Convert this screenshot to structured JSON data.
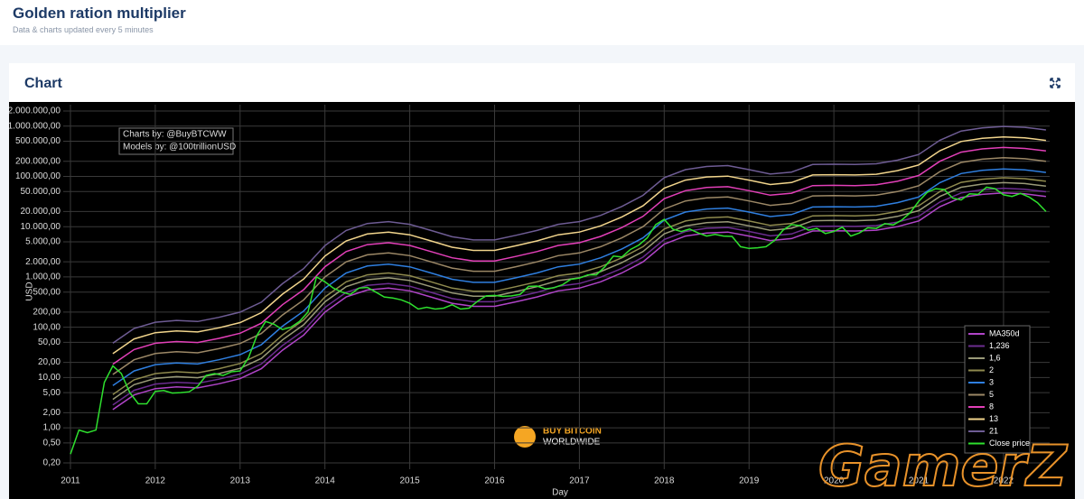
{
  "header": {
    "title": "Golden ration multiplier",
    "subtitle": "Data & charts updated every 5 minutes"
  },
  "card": {
    "title": "Chart"
  },
  "overlay": {
    "text": "GamerZ"
  },
  "chart_data": {
    "type": "line",
    "x_label": "Day",
    "y_label": "USD",
    "annotation": [
      "Charts by: @BuyBTCWW",
      "Models by: @100trillionUSD"
    ],
    "logo": [
      "BUY BITCOIN",
      "WORLDWIDE"
    ],
    "log_y": true,
    "grid": true,
    "legend": "lower right",
    "xlim": [
      2010.915,
      2022.544
    ],
    "xticks": [
      2011,
      2012,
      2013,
      2014,
      2015,
      2016,
      2017,
      2018,
      2019,
      2020,
      2021,
      2022
    ],
    "ylim": [
      0.15,
      2670000
    ],
    "yticks": [
      {
        "value": 0.2,
        "label": "0,20"
      },
      {
        "value": 0.5,
        "label": "0,50"
      },
      {
        "value": 1,
        "label": "1,00"
      },
      {
        "value": 2,
        "label": "2,00"
      },
      {
        "value": 5,
        "label": "5,00"
      },
      {
        "value": 10,
        "label": "10,00"
      },
      {
        "value": 20,
        "label": "20,00"
      },
      {
        "value": 50,
        "label": "50,00"
      },
      {
        "value": 100,
        "label": "100,00"
      },
      {
        "value": 200,
        "label": "200,00"
      },
      {
        "value": 500,
        "label": "500,00"
      },
      {
        "value": 1000,
        "label": "1.000,00"
      },
      {
        "value": 2000,
        "label": "2.000,00"
      },
      {
        "value": 5000,
        "label": "5.000,00"
      },
      {
        "value": 10000,
        "label": "10.000,00"
      },
      {
        "value": 20000,
        "label": "20.000,00"
      },
      {
        "value": 50000,
        "label": "50.000,00"
      },
      {
        "value": 100000,
        "label": "100.000,00"
      },
      {
        "value": 200000,
        "label": "200.000,00"
      },
      {
        "value": 500000,
        "label": "500.000,00"
      },
      {
        "value": 1000000,
        "label": "1.000.000,00"
      },
      {
        "value": 2000000,
        "label": "2.000.000,00"
      }
    ],
    "x": [
      2011.5,
      2011.75,
      2012,
      2012.25,
      2012.5,
      2012.75,
      2013,
      2013.25,
      2013.5,
      2013.75,
      2014,
      2014.25,
      2014.5,
      2014.75,
      2015,
      2015.25,
      2015.5,
      2015.75,
      2016,
      2016.25,
      2016.5,
      2016.75,
      2017,
      2017.25,
      2017.5,
      2017.75,
      2018,
      2018.25,
      2018.5,
      2018.75,
      2019,
      2019.25,
      2019.5,
      2019.75,
      2020,
      2020.25,
      2020.5,
      2020.75,
      2021,
      2021.25,
      2021.5,
      2021.75,
      2022,
      2022.25,
      2022.5
    ],
    "series": [
      {
        "name": "MA350d",
        "color": "#b044c8",
        "values": [
          2.3,
          4.5,
          6,
          6.5,
          6.2,
          7.5,
          9.5,
          15,
          35,
          70,
          200,
          400,
          550,
          600,
          530,
          400,
          300,
          260,
          260,
          320,
          400,
          530,
          600,
          800,
          1200,
          2000,
          4500,
          6500,
          7500,
          7800,
          6500,
          5300,
          5800,
          8200,
          8300,
          8200,
          8500,
          10000,
          13000,
          25000,
          38000,
          44000,
          47000,
          45000,
          40000
        ]
      },
      {
        "name": "1,236",
        "color": "#6b2d8f",
        "values": [
          2.84,
          5.56,
          7.42,
          8.03,
          7.66,
          9.27,
          11.74,
          18.54,
          43.26,
          86.52,
          247.2,
          494.4,
          679.8,
          741.6,
          655.08,
          494.4,
          370.8,
          321.36,
          321.36,
          395.52,
          494.4,
          655.08,
          741.6,
          988.8,
          1483.2,
          2472,
          5562,
          8034,
          9270,
          9640.8,
          8034,
          6550.8,
          7168.8,
          10135.2,
          10258.8,
          10135.2,
          10506,
          12360,
          16068,
          30900,
          46968,
          54384,
          58092,
          55620,
          49440
        ]
      },
      {
        "name": "1,6",
        "color": "#9a9a78",
        "values": [
          3.68,
          7.2,
          9.6,
          10.4,
          9.92,
          12,
          15.2,
          24,
          56,
          112,
          320,
          640,
          880,
          960,
          848,
          640,
          480,
          416,
          416,
          512,
          640,
          848,
          960,
          1280,
          1920,
          3200,
          7200,
          10400,
          12000,
          12480,
          10400,
          8480,
          9280,
          13120,
          13280,
          13120,
          13600,
          16000,
          20800,
          40000,
          60800,
          70400,
          75200,
          72000,
          64000
        ]
      },
      {
        "name": "2",
        "color": "#8f8a4e",
        "values": [
          4.6,
          9,
          12,
          13,
          12.4,
          15,
          19,
          30,
          70,
          140,
          400,
          800,
          1100,
          1200,
          1060,
          800,
          600,
          520,
          520,
          640,
          800,
          1060,
          1200,
          1600,
          2400,
          4000,
          9000,
          13000,
          15000,
          15600,
          13000,
          10600,
          11600,
          16400,
          16600,
          16400,
          17000,
          20000,
          26000,
          50000,
          76000,
          88000,
          94000,
          90000,
          80000
        ]
      },
      {
        "name": "3",
        "color": "#2f7fe0",
        "values": [
          6.9,
          13.5,
          18,
          19.5,
          18.6,
          22.5,
          28.5,
          45,
          105,
          210,
          600,
          1200,
          1650,
          1800,
          1590,
          1200,
          900,
          780,
          780,
          960,
          1200,
          1590,
          1800,
          2400,
          3600,
          6000,
          13500,
          19500,
          22500,
          23400,
          19500,
          15900,
          17400,
          24600,
          24900,
          24600,
          25500,
          30000,
          39000,
          75000,
          114000,
          132000,
          141000,
          135000,
          120000
        ]
      },
      {
        "name": "5",
        "color": "#9c8866",
        "values": [
          11.5,
          22.5,
          30,
          32.5,
          31,
          37.5,
          47.5,
          75,
          175,
          350,
          1000,
          2000,
          2750,
          3000,
          2650,
          2000,
          1500,
          1300,
          1300,
          1600,
          2000,
          2650,
          3000,
          4000,
          6000,
          10000,
          22500,
          32500,
          37500,
          39000,
          32500,
          26500,
          29000,
          41000,
          41500,
          41000,
          42500,
          50000,
          65000,
          125000,
          190000,
          220000,
          235000,
          225000,
          200000
        ]
      },
      {
        "name": "8",
        "color": "#e23fb8",
        "values": [
          18.4,
          36,
          48,
          52,
          49.6,
          60,
          76,
          120,
          280,
          560,
          1600,
          3200,
          4400,
          4800,
          4240,
          3200,
          2400,
          2080,
          2080,
          2560,
          3200,
          4240,
          4800,
          6400,
          9600,
          16000,
          36000,
          52000,
          60000,
          62400,
          52000,
          42400,
          46400,
          65600,
          66400,
          65600,
          68000,
          80000,
          104000,
          200000,
          304000,
          352000,
          376000,
          360000,
          320000
        ]
      },
      {
        "name": "13",
        "color": "#f2d58c",
        "values": [
          29.9,
          58.5,
          78,
          84.5,
          80.6,
          97.5,
          123.5,
          195,
          455,
          910,
          2600,
          5200,
          7150,
          7800,
          6890,
          5200,
          3900,
          3380,
          3380,
          4160,
          5200,
          6890,
          7800,
          10400,
          15600,
          26000,
          58500,
          84500,
          97500,
          101400,
          84500,
          68900,
          75400,
          106600,
          107900,
          106600,
          110500,
          130000,
          169000,
          325000,
          494000,
          572000,
          611000,
          585000,
          520000
        ]
      },
      {
        "name": "21",
        "color": "#6e5c94",
        "values": [
          48.3,
          94.5,
          126,
          136.5,
          130.2,
          157.5,
          199.5,
          315,
          735,
          1470,
          4200,
          8400,
          11550,
          12600,
          11130,
          8400,
          6300,
          5460,
          5460,
          6720,
          8400,
          11130,
          12600,
          16800,
          25200,
          42000,
          94500,
          136500,
          157500,
          163800,
          136500,
          111300,
          121800,
          172200,
          174300,
          172200,
          178500,
          210000,
          273000,
          525000,
          798000,
          924000,
          987000,
          945000,
          840000
        ]
      },
      {
        "name": "Close price",
        "color": "#2ee02e",
        "x": [
          2011,
          2011.1,
          2011.2,
          2011.3,
          2011.4,
          2011.5,
          2011.6,
          2011.7,
          2011.8,
          2011.9,
          2012,
          2012.1,
          2012.2,
          2012.3,
          2012.4,
          2012.5,
          2012.6,
          2012.7,
          2012.8,
          2012.9,
          2013,
          2013.1,
          2013.2,
          2013.3,
          2013.4,
          2013.5,
          2013.6,
          2013.7,
          2013.8,
          2013.9,
          2014,
          2014.1,
          2014.2,
          2014.3,
          2014.4,
          2014.5,
          2014.6,
          2014.7,
          2014.8,
          2014.9,
          2015,
          2015.1,
          2015.2,
          2015.3,
          2015.4,
          2015.5,
          2015.6,
          2015.7,
          2015.8,
          2015.9,
          2016,
          2016.1,
          2016.2,
          2016.3,
          2016.4,
          2016.5,
          2016.6,
          2016.7,
          2016.8,
          2016.9,
          2017,
          2017.1,
          2017.2,
          2017.3,
          2017.4,
          2017.5,
          2017.6,
          2017.7,
          2017.8,
          2017.9,
          2018,
          2018.1,
          2018.2,
          2018.3,
          2018.4,
          2018.5,
          2018.6,
          2018.7,
          2018.8,
          2018.9,
          2019,
          2019.1,
          2019.2,
          2019.3,
          2019.4,
          2019.5,
          2019.6,
          2019.7,
          2019.8,
          2019.9,
          2020,
          2020.1,
          2020.2,
          2020.3,
          2020.4,
          2020.5,
          2020.6,
          2020.7,
          2020.8,
          2020.9,
          2021,
          2021.1,
          2021.2,
          2021.3,
          2021.4,
          2021.5,
          2021.6,
          2021.7,
          2021.8,
          2021.9,
          2022,
          2022.1,
          2022.2,
          2022.3,
          2022.4,
          2022.5
        ],
        "values": [
          0.3,
          0.9,
          0.8,
          0.9,
          8,
          17,
          12,
          5,
          3,
          3,
          5.3,
          5.5,
          4.9,
          5,
          5.2,
          6.7,
          11,
          12,
          11,
          13,
          13.5,
          25,
          70,
          130,
          115,
          90,
          100,
          130,
          200,
          1000,
          800,
          600,
          500,
          450,
          600,
          620,
          500,
          400,
          380,
          350,
          300,
          230,
          250,
          230,
          240,
          280,
          230,
          240,
          330,
          420,
          430,
          410,
          420,
          450,
          650,
          660,
          580,
          610,
          700,
          900,
          950,
          1100,
          1100,
          1600,
          2600,
          2500,
          3500,
          4300,
          6000,
          11000,
          14000,
          9000,
          8000,
          9000,
          7500,
          6500,
          7000,
          6500,
          6400,
          4000,
          3700,
          3800,
          4000,
          5300,
          8500,
          11000,
          10500,
          8500,
          9200,
          7300,
          8000,
          9800,
          6500,
          7500,
          9500,
          9200,
          11500,
          10800,
          13500,
          19000,
          32000,
          48000,
          57000,
          55000,
          37000,
          34000,
          45000,
          44000,
          61000,
          57000,
          43000,
          40000,
          46000,
          39000,
          30000,
          20000
        ]
      }
    ]
  }
}
